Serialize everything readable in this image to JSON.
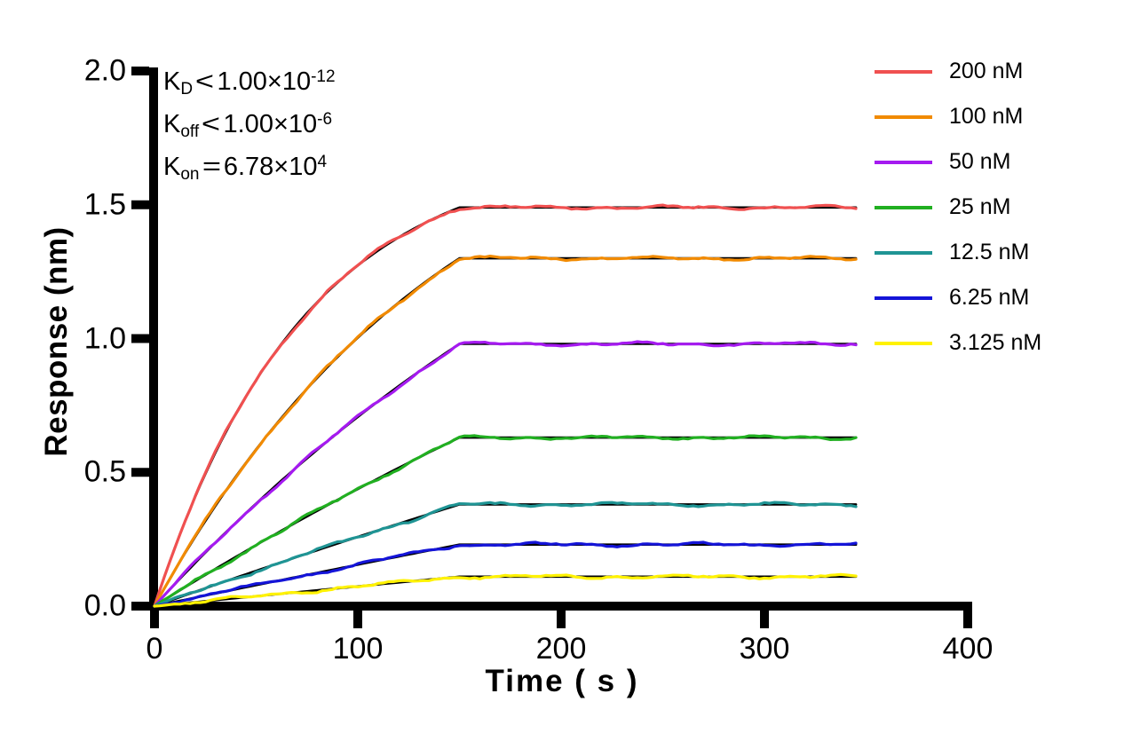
{
  "figure": {
    "background": "#FFFFFF",
    "axis_color": "#000000"
  },
  "chart_data": {
    "type": "line",
    "title": "",
    "xlabel": "Time ( s )",
    "ylabel": "Response (nm)",
    "xlim": [
      0,
      400
    ],
    "ylim": [
      0.0,
      2.0
    ],
    "x_ticks": [
      "0",
      "100",
      "200",
      "300",
      "400"
    ],
    "x_tick_values": [
      0,
      100,
      200,
      300,
      400
    ],
    "y_ticks": [
      "0.0",
      "0.5",
      "1.0",
      "1.5",
      "2.0"
    ],
    "y_tick_values": [
      0.0,
      0.5,
      1.0,
      1.5,
      2.0
    ],
    "grid": false,
    "legend_position": "right-outside-top",
    "phases": {
      "association_start_s": 0,
      "association_end_s": 150,
      "trace_end_s": 345
    },
    "kinetics_annotation": {
      "lines": [
        {
          "base": "K",
          "sub": "D",
          "cmp": "<",
          "mant": "1.00×10",
          "sup": "-12"
        },
        {
          "base": "K",
          "sub": "off",
          "cmp": "<",
          "mant": "1.00×10",
          "sup": "-6"
        },
        {
          "base": "K",
          "sub": "on",
          "cmp": "=",
          "mant": "6.78×10",
          "sup": "4"
        }
      ]
    },
    "series": [
      {
        "name": "200 nM",
        "concentration_nM": 200,
        "color": "#F05050",
        "plateau_nm": 1.49,
        "kobs_per_s": 0.0136
      },
      {
        "name": "100 nM",
        "concentration_nM": 100,
        "color": "#F18A00",
        "plateau_nm": 1.3,
        "kobs_per_s": 0.0068
      },
      {
        "name": "50 nM",
        "concentration_nM": 50,
        "color": "#A51AF0",
        "plateau_nm": 0.98,
        "kobs_per_s": 0.0034
      },
      {
        "name": "25 nM",
        "concentration_nM": 25,
        "color": "#21AF21",
        "plateau_nm": 0.63,
        "kobs_per_s": 0.0017
      },
      {
        "name": "12.5 nM",
        "concentration_nM": 12.5,
        "color": "#1F9494",
        "plateau_nm": 0.38,
        "kobs_per_s": 0.00085
      },
      {
        "name": "6.25 nM",
        "concentration_nM": 6.25,
        "color": "#1414D8",
        "plateau_nm": 0.23,
        "kobs_per_s": 0.00043
      },
      {
        "name": "3.125 nM",
        "concentration_nM": 3.125,
        "color": "#FFF200",
        "plateau_nm": 0.11,
        "kobs_per_s": 0.00021
      }
    ],
    "fit": {
      "color": "#000000"
    }
  }
}
